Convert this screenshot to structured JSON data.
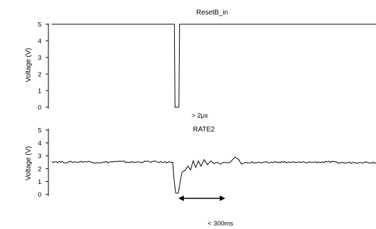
{
  "chart_data": [
    {
      "type": "line",
      "title": "ResetB_in",
      "ylabel": "Voltage (V)",
      "ylim": [
        0,
        5
      ],
      "yticks": [
        "5",
        "4",
        "3",
        "2",
        "1",
        "0"
      ],
      "xlim": [
        0,
        100
      ],
      "series": [
        {
          "x": [
            0,
            37.8,
            38.0,
            38.1,
            39.1,
            39.2,
            39.4,
            100
          ],
          "y": [
            5,
            5,
            0,
            0,
            0,
            0,
            5,
            5
          ]
        }
      ],
      "annotations": [
        {
          "text": "> 2μs",
          "x": 38.6,
          "y": 0
        }
      ]
    },
    {
      "type": "line",
      "title": "RATE2",
      "ylabel": "Voltage (V)",
      "ylim": [
        0,
        5
      ],
      "yticks": [
        "5",
        "4",
        "3",
        "2",
        "1",
        "0"
      ],
      "xlim": [
        0,
        100
      ],
      "series": [
        {
          "x": [
            0,
            5,
            10,
            15,
            20,
            25,
            30,
            34,
            37.3,
            37.6,
            38.2,
            39.0,
            39.6,
            40.1,
            40.6,
            41.2,
            42.0,
            42.8,
            43.6,
            44.4,
            45.2,
            46.0,
            47.0,
            48.0,
            49.0,
            50.0,
            51.0,
            52.0,
            53.0,
            54.0,
            55.0,
            56.5,
            57.5,
            58.5,
            60,
            65,
            70,
            75,
            80,
            85,
            90,
            95,
            100
          ],
          "y": [
            2.55,
            2.5,
            2.55,
            2.48,
            2.55,
            2.5,
            2.55,
            2.5,
            2.5,
            1.4,
            0.1,
            0.1,
            1.0,
            1.7,
            1.8,
            1.9,
            2.2,
            1.9,
            2.6,
            2.1,
            2.6,
            2.2,
            2.7,
            2.3,
            2.6,
            2.4,
            2.5,
            2.35,
            2.5,
            2.45,
            2.5,
            2.9,
            2.75,
            2.35,
            2.5,
            2.45,
            2.52,
            2.48,
            2.5,
            2.52,
            2.45,
            2.5,
            2.48
          ]
        }
      ],
      "annotations": [
        {
          "text": "< 300ms",
          "x1": 39.0,
          "x2": 53.5,
          "y": -0.3
        }
      ]
    }
  ]
}
